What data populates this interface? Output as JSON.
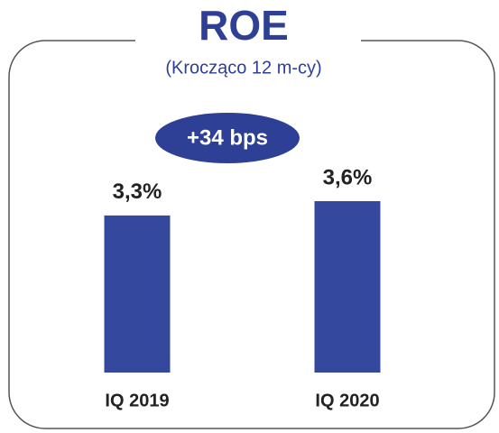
{
  "chart_data": {
    "type": "bar",
    "title": "ROE",
    "subtitle": "(Krocząco 12 m-cy)",
    "annotation": "+34 bps",
    "categories": [
      "IQ 2019",
      "IQ 2020"
    ],
    "values": [
      3.3,
      3.6
    ],
    "value_labels": [
      "3,3%",
      "3,6%"
    ],
    "color": "#34489e"
  }
}
